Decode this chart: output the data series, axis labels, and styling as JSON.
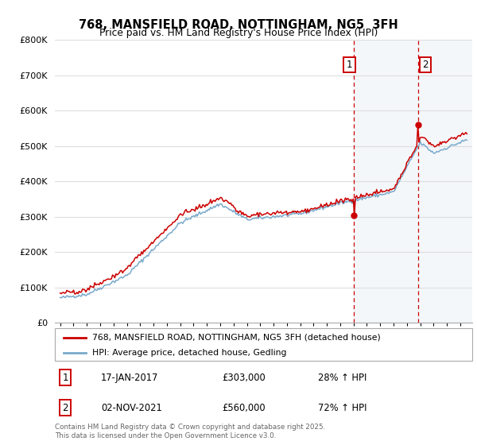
{
  "title": "768, MANSFIELD ROAD, NOTTINGHAM, NG5  3FH",
  "subtitle": "Price paid vs. HM Land Registry's House Price Index (HPI)",
  "legend_label_red": "768, MANSFIELD ROAD, NOTTINGHAM, NG5 3FH (detached house)",
  "legend_label_blue": "HPI: Average price, detached house, Gedling",
  "annotation1_date": "17-JAN-2017",
  "annotation1_price": "£303,000",
  "annotation1_hpi": "28% ↑ HPI",
  "annotation2_date": "02-NOV-2021",
  "annotation2_price": "£560,000",
  "annotation2_hpi": "72% ↑ HPI",
  "footer": "Contains HM Land Registry data © Crown copyright and database right 2025.\nThis data is licensed under the Open Government Licence v3.0.",
  "ylim": [
    0,
    800000
  ],
  "yticks": [
    0,
    100000,
    200000,
    300000,
    400000,
    500000,
    600000,
    700000,
    800000
  ],
  "ytick_labels": [
    "£0",
    "£100K",
    "£200K",
    "£300K",
    "£400K",
    "£500K",
    "£600K",
    "£700K",
    "£800K"
  ],
  "vline1_year": 2017.04,
  "vline2_year": 2021.84,
  "sale1_year": 2017.04,
  "sale1_price": 303000,
  "sale2_year": 2021.84,
  "sale2_price": 560000,
  "background_color": "#ffffff",
  "plot_bg_color": "#ffffff",
  "grid_color": "#dddddd",
  "red_color": "#cc0000",
  "blue_color": "#7aaacb",
  "vline_color": "#cc0000",
  "highlight_bg": "#dde8f5"
}
